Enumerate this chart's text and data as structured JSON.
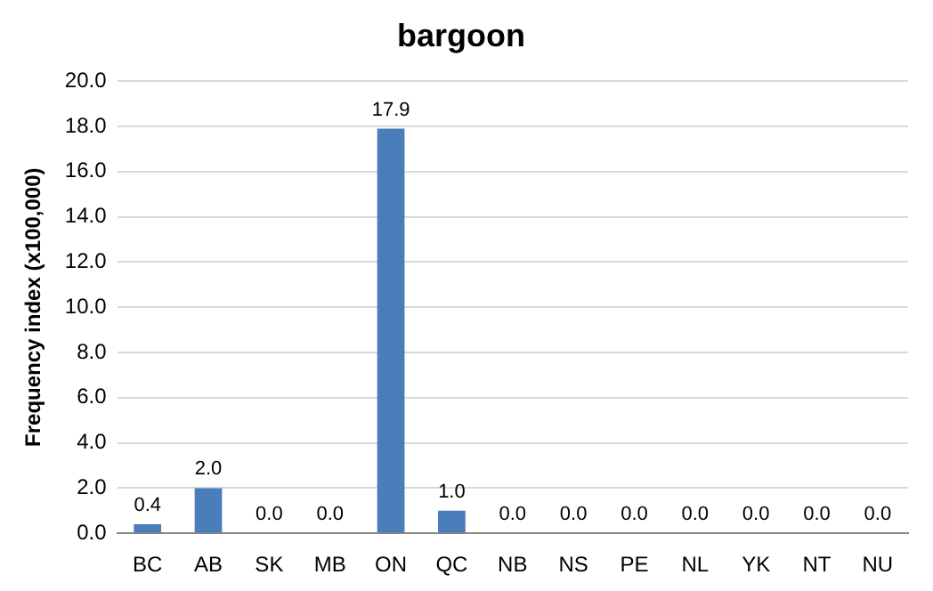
{
  "chart_data": {
    "type": "bar",
    "title": "bargoon",
    "ylabel": "Frequency index (x100,000)",
    "categories": [
      "BC",
      "AB",
      "SK",
      "MB",
      "ON",
      "QC",
      "NB",
      "NS",
      "PE",
      "NL",
      "YK",
      "NT",
      "NU"
    ],
    "values": [
      0.4,
      2.0,
      0,
      0,
      17.9,
      1.0,
      0,
      0,
      0,
      0,
      0,
      0,
      0
    ],
    "value_labels": [
      "0.4",
      "2.0",
      "0.0",
      "0.0",
      "17.9",
      "1.0",
      "0.0",
      "0.0",
      "0.0",
      "0.0",
      "0.0",
      "0.0",
      "0.0"
    ],
    "color": "#4a7ebb",
    "ylim": [
      0,
      20
    ],
    "yticks": [
      {
        "value": 0,
        "label": "0.0"
      },
      {
        "value": 2,
        "label": "2.0"
      },
      {
        "value": 4,
        "label": "4.0"
      },
      {
        "value": 6,
        "label": "6.0"
      },
      {
        "value": 8,
        "label": "8.0"
      },
      {
        "value": 10,
        "label": "10.0"
      },
      {
        "value": 12,
        "label": "12.0"
      },
      {
        "value": 14,
        "label": "14.0"
      },
      {
        "value": 16,
        "label": "16.0"
      },
      {
        "value": 18,
        "label": "18.0"
      },
      {
        "value": 20,
        "label": "20.0"
      }
    ],
    "grid": "y"
  }
}
